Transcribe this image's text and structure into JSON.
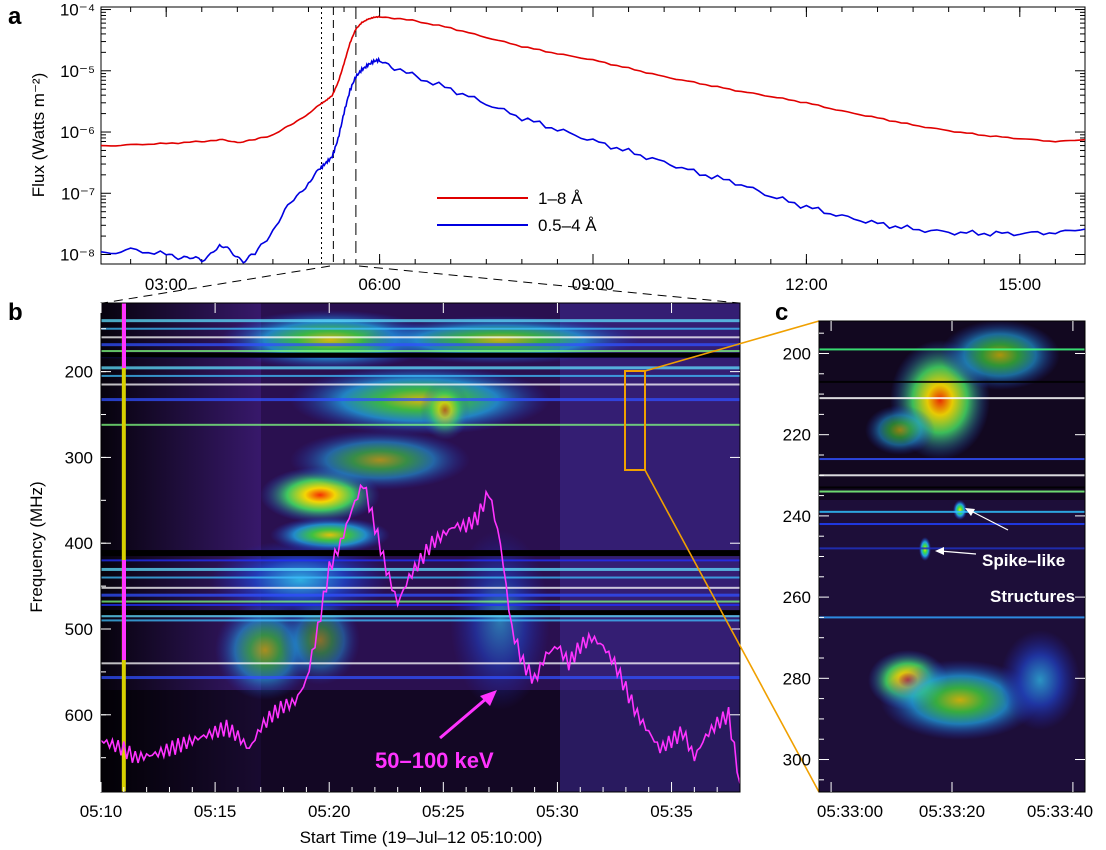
{
  "panel_labels": {
    "a": "a",
    "b": "b",
    "c": "c"
  },
  "colors": {
    "goes_long": "#e00000",
    "goes_short": "#0000e0",
    "hxr": "#ff33ff",
    "zoom_box": "#f0a000",
    "marker_line": "#d8d000",
    "spectrum_bg": "#2a1050"
  },
  "chart_data": [
    {
      "panel": "a",
      "type": "line",
      "ylabel": "Flux (Watts m⁻²)",
      "xlabel": "",
      "y_scale": "log",
      "ylim": [
        7e-09,
        0.00011
      ],
      "xlim": [
        "02:05",
        "15:55"
      ],
      "x_ticks": [
        "03:00",
        "06:00",
        "09:00",
        "12:00",
        "15:00"
      ],
      "y_ticks": [
        "10⁻⁸",
        "10⁻⁷",
        "10⁻⁶",
        "10⁻⁵",
        "10⁻⁴"
      ],
      "legend_position": "center",
      "vertical_markers": [
        "05:11",
        "05:21",
        "05:40"
      ],
      "series": [
        {
          "name": "1–8 Å",
          "x": [
            "02:05",
            "02:30",
            "03:00",
            "03:30",
            "03:45",
            "04:00",
            "04:15",
            "04:30",
            "04:45",
            "05:00",
            "05:10",
            "05:15",
            "05:20",
            "05:25",
            "05:30",
            "05:35",
            "05:40",
            "05:45",
            "05:50",
            "05:55",
            "06:00",
            "06:15",
            "06:30",
            "07:00",
            "07:30",
            "08:00",
            "08:30",
            "09:00",
            "09:30",
            "10:00",
            "10:30",
            "11:00",
            "11:30",
            "12:00",
            "12:30",
            "13:00",
            "13:30",
            "14:00",
            "14:30",
            "15:00",
            "15:30",
            "15:55"
          ],
          "values": [
            6e-07,
            6.2e-07,
            6.5e-07,
            7e-07,
            7.5e-07,
            6.8e-07,
            7.5e-07,
            9e-07,
            1.3e-06,
            2e-06,
            2.8e-06,
            3.3e-06,
            4e-06,
            6.5e-06,
            1.3e-05,
            2.8e-05,
            4.8e-05,
            6.2e-05,
            7e-05,
            7.4e-05,
            7.5e-05,
            7.2e-05,
            6.5e-05,
            5e-05,
            3.5e-05,
            2.5e-05,
            1.9e-05,
            1.5e-05,
            1.1e-05,
            8e-06,
            6.2e-06,
            4.8e-06,
            3.8e-06,
            3e-06,
            2.2e-06,
            1.7e-06,
            1.3e-06,
            1.05e-06,
            8.8e-07,
            7.8e-07,
            7e-07,
            7.5e-07
          ]
        },
        {
          "name": "0.5–4 Å",
          "x": [
            "02:05",
            "02:30",
            "03:00",
            "03:15",
            "03:30",
            "03:45",
            "03:55",
            "04:05",
            "04:15",
            "04:30",
            "04:45",
            "05:00",
            "05:10",
            "05:15",
            "05:20",
            "05:25",
            "05:30",
            "05:35",
            "05:40",
            "05:45",
            "05:50",
            "05:55",
            "06:00",
            "06:15",
            "06:30",
            "07:00",
            "07:30",
            "08:00",
            "08:30",
            "09:00",
            "09:30",
            "10:00",
            "10:30",
            "11:00",
            "11:30",
            "12:00",
            "12:30",
            "13:00",
            "13:30",
            "14:00",
            "14:30",
            "15:00",
            "15:30",
            "15:55"
          ],
          "values": [
            1.1e-08,
            1.2e-08,
            1e-08,
            9e-09,
            8e-09,
            1.4e-08,
            1.1e-08,
            8e-09,
            1e-08,
            2.5e-08,
            7e-08,
            1.5e-07,
            2.4e-07,
            3.2e-07,
            4.2e-07,
            8e-07,
            2e-06,
            4.5e-06,
            8e-06,
            1.1e-05,
            1.3e-05,
            1.4e-05,
            1.4e-05,
            1.1e-05,
            8e-06,
            5e-06,
            2.9e-06,
            1.7e-06,
            1.1e-06,
            7.2e-07,
            4.8e-07,
            3.2e-07,
            2.1e-07,
            1.5e-07,
            9e-08,
            6e-08,
            4.2e-08,
            3.2e-08,
            2.6e-08,
            2.3e-08,
            2.2e-08,
            2.2e-08,
            2.3e-08,
            2.6e-08
          ]
        }
      ],
      "title": ""
    },
    {
      "panel": "b",
      "type": "heatmap",
      "title": "",
      "xlabel": "Start Time (19–Jul–12 05:10:00)",
      "ylabel": "Frequency (MHz)",
      "x_ticks": [
        "05:10",
        "05:15",
        "05:20",
        "05:25",
        "05:30",
        "05:35"
      ],
      "y_ticks": [
        "200",
        "300",
        "400",
        "500",
        "600"
      ],
      "xlim_min": [
        0,
        28
      ],
      "ylim_mhz": [
        120,
        690
      ],
      "overlay": {
        "name": "50–100 keV",
        "x_min": [
          0,
          0.5,
          1,
          1.5,
          2,
          2.5,
          3,
          3.5,
          4,
          4.5,
          5,
          5.5,
          6,
          6.5,
          7,
          7.5,
          8,
          8.5,
          9,
          9.5,
          10,
          10.5,
          11,
          11.5,
          12,
          12.5,
          13,
          13.5,
          14,
          14.5,
          15,
          15.5,
          16,
          16.5,
          17,
          17.5,
          18,
          18.5,
          19,
          19.5,
          20,
          20.5,
          21,
          21.5,
          22,
          22.5,
          23,
          23.5,
          24,
          24.5,
          25,
          25.5,
          26,
          26.5,
          27,
          27.5,
          28
        ],
        "y_mhz": [
          630,
          635,
          640,
          650,
          648,
          645,
          640,
          635,
          630,
          625,
          620,
          615,
          625,
          640,
          615,
          600,
          590,
          585,
          560,
          500,
          430,
          400,
          360,
          330,
          380,
          430,
          470,
          440,
          420,
          400,
          390,
          380,
          380,
          370,
          340,
          400,
          500,
          540,
          560,
          530,
          520,
          540,
          520,
          510,
          520,
          540,
          570,
          600,
          620,
          640,
          630,
          620,
          650,
          625,
          610,
          600,
          680
        ]
      },
      "marker_time_min": 1.0
    },
    {
      "panel": "c",
      "type": "heatmap",
      "title": "",
      "xlabel": "",
      "ylabel": "",
      "x_ticks": [
        "05:33:00",
        "05:33:20",
        "05:33:40"
      ],
      "y_ticks": [
        "200",
        "220",
        "240",
        "260",
        "280",
        "300"
      ],
      "xlim_s": [
        0,
        44
      ],
      "ylim_mhz": [
        192,
        308
      ],
      "annotations": [
        "Spike–like",
        "Structures"
      ]
    }
  ]
}
